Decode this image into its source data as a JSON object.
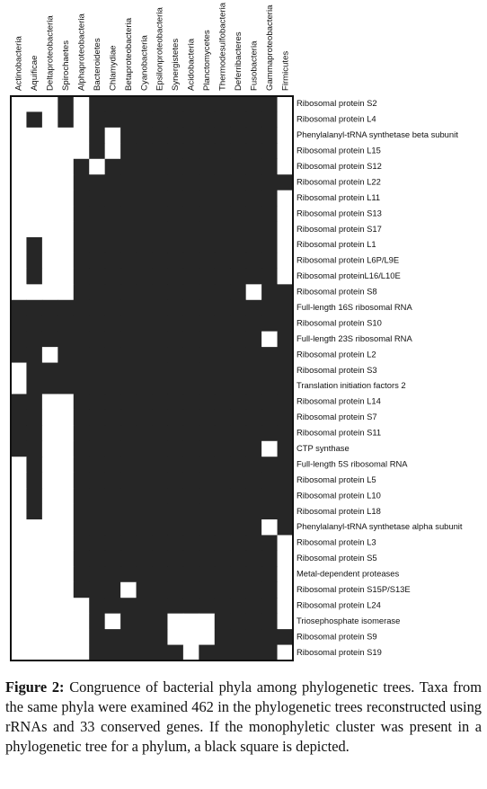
{
  "figure": {
    "columns": [
      "Actinobacteria",
      "Aquificae",
      "Deltaproteobacteria",
      "Spirochaetes",
      "Alphaproteobacteria",
      "Bacteroidetes",
      "Chlamydiae",
      "Betaproteobacteria",
      "Cyanobacteria",
      "Epsilonproteobacteria",
      "Synergistetes",
      "Acidobacteria",
      "Planctomycetes",
      "Thermodesulfobacteria",
      "Deferribacteres",
      "Fusobacteria",
      "Gammaproteobacteria",
      "Firmicutes"
    ],
    "rows": [
      {
        "label": "Ribosomal protein S2",
        "cells": [
          0,
          0,
          0,
          1,
          0,
          1,
          1,
          1,
          1,
          1,
          1,
          1,
          1,
          1,
          1,
          1,
          1,
          0
        ]
      },
      {
        "label": "Ribosomal protein L4",
        "cells": [
          0,
          1,
          0,
          1,
          0,
          1,
          1,
          1,
          1,
          1,
          1,
          1,
          1,
          1,
          1,
          1,
          1,
          0
        ]
      },
      {
        "label": "Phenylalanyl-tRNA synthetase beta subunit",
        "cells": [
          0,
          0,
          0,
          0,
          0,
          1,
          0,
          1,
          1,
          1,
          1,
          1,
          1,
          1,
          1,
          1,
          1,
          0
        ]
      },
      {
        "label": "Ribosomal protein L15",
        "cells": [
          0,
          0,
          0,
          0,
          0,
          1,
          0,
          1,
          1,
          1,
          1,
          1,
          1,
          1,
          1,
          1,
          1,
          0
        ]
      },
      {
        "label": "Ribosomal protein S12",
        "cells": [
          0,
          0,
          0,
          0,
          1,
          0,
          1,
          1,
          1,
          1,
          1,
          1,
          1,
          1,
          1,
          1,
          1,
          0
        ]
      },
      {
        "label": "Ribosomal protein L22",
        "cells": [
          0,
          0,
          0,
          0,
          1,
          1,
          1,
          1,
          1,
          1,
          1,
          1,
          1,
          1,
          1,
          1,
          1,
          1
        ]
      },
      {
        "label": "Ribosomal protein L11",
        "cells": [
          0,
          0,
          0,
          0,
          1,
          1,
          1,
          1,
          1,
          1,
          1,
          1,
          1,
          1,
          1,
          1,
          1,
          0
        ]
      },
      {
        "label": "Ribosomal protein S13",
        "cells": [
          0,
          0,
          0,
          0,
          1,
          1,
          1,
          1,
          1,
          1,
          1,
          1,
          1,
          1,
          1,
          1,
          1,
          0
        ]
      },
      {
        "label": "Ribosomal protein S17",
        "cells": [
          0,
          0,
          0,
          0,
          1,
          1,
          1,
          1,
          1,
          1,
          1,
          1,
          1,
          1,
          1,
          1,
          1,
          0
        ]
      },
      {
        "label": "Ribosomal protein L1",
        "cells": [
          0,
          1,
          0,
          0,
          1,
          1,
          1,
          1,
          1,
          1,
          1,
          1,
          1,
          1,
          1,
          1,
          1,
          0
        ]
      },
      {
        "label": "Ribosomal protein L6P/L9E",
        "cells": [
          0,
          1,
          0,
          0,
          1,
          1,
          1,
          1,
          1,
          1,
          1,
          1,
          1,
          1,
          1,
          1,
          1,
          0
        ]
      },
      {
        "label": "Ribosomal proteinL16/L10E",
        "cells": [
          0,
          1,
          0,
          0,
          1,
          1,
          1,
          1,
          1,
          1,
          1,
          1,
          1,
          1,
          1,
          1,
          1,
          0
        ]
      },
      {
        "label": "Ribosomal protein S8",
        "cells": [
          0,
          0,
          0,
          0,
          1,
          1,
          1,
          1,
          1,
          1,
          1,
          1,
          1,
          1,
          1,
          0,
          1,
          1
        ]
      },
      {
        "label": "Full-length 16S ribosomal RNA",
        "cells": [
          1,
          1,
          1,
          1,
          1,
          1,
          1,
          1,
          1,
          1,
          1,
          1,
          1,
          1,
          1,
          1,
          1,
          1
        ]
      },
      {
        "label": "Ribosomal protein S10",
        "cells": [
          1,
          1,
          1,
          1,
          1,
          1,
          1,
          1,
          1,
          1,
          1,
          1,
          1,
          1,
          1,
          1,
          1,
          1
        ]
      },
      {
        "label": "Full-length 23S ribosomal RNA",
        "cells": [
          1,
          1,
          1,
          1,
          1,
          1,
          1,
          1,
          1,
          1,
          1,
          1,
          1,
          1,
          1,
          1,
          0,
          1
        ]
      },
      {
        "label": "Ribosomal protein L2",
        "cells": [
          1,
          1,
          0,
          1,
          1,
          1,
          1,
          1,
          1,
          1,
          1,
          1,
          1,
          1,
          1,
          1,
          1,
          1
        ]
      },
      {
        "label": "Ribosomal protein S3",
        "cells": [
          0,
          1,
          1,
          1,
          1,
          1,
          1,
          1,
          1,
          1,
          1,
          1,
          1,
          1,
          1,
          1,
          1,
          1
        ]
      },
      {
        "label": "Translation initiation factors 2",
        "cells": [
          0,
          1,
          1,
          1,
          1,
          1,
          1,
          1,
          1,
          1,
          1,
          1,
          1,
          1,
          1,
          1,
          1,
          1
        ]
      },
      {
        "label": "Ribosomal protein L14",
        "cells": [
          1,
          1,
          0,
          0,
          1,
          1,
          1,
          1,
          1,
          1,
          1,
          1,
          1,
          1,
          1,
          1,
          1,
          1
        ]
      },
      {
        "label": "Ribosomal protein S7",
        "cells": [
          1,
          1,
          0,
          0,
          1,
          1,
          1,
          1,
          1,
          1,
          1,
          1,
          1,
          1,
          1,
          1,
          1,
          1
        ]
      },
      {
        "label": "Ribosomal protein S11",
        "cells": [
          1,
          1,
          0,
          0,
          1,
          1,
          1,
          1,
          1,
          1,
          1,
          1,
          1,
          1,
          1,
          1,
          1,
          1
        ]
      },
      {
        "label": "CTP synthase",
        "cells": [
          1,
          1,
          0,
          0,
          1,
          1,
          1,
          1,
          1,
          1,
          1,
          1,
          1,
          1,
          1,
          1,
          0,
          1
        ]
      },
      {
        "label": "Full-length 5S ribosomal RNA",
        "cells": [
          0,
          1,
          0,
          0,
          1,
          1,
          1,
          1,
          1,
          1,
          1,
          1,
          1,
          1,
          1,
          1,
          1,
          1
        ]
      },
      {
        "label": "Ribosomal protein L5",
        "cells": [
          0,
          1,
          0,
          0,
          1,
          1,
          1,
          1,
          1,
          1,
          1,
          1,
          1,
          1,
          1,
          1,
          1,
          1
        ]
      },
      {
        "label": "Ribosomal protein L10",
        "cells": [
          0,
          1,
          0,
          0,
          1,
          1,
          1,
          1,
          1,
          1,
          1,
          1,
          1,
          1,
          1,
          1,
          1,
          1
        ]
      },
      {
        "label": "Ribosomal protein L18",
        "cells": [
          0,
          1,
          0,
          0,
          1,
          1,
          1,
          1,
          1,
          1,
          1,
          1,
          1,
          1,
          1,
          1,
          1,
          1
        ]
      },
      {
        "label": "Phenylalanyl-tRNA synthetase alpha subunit",
        "cells": [
          0,
          0,
          0,
          0,
          1,
          1,
          1,
          1,
          1,
          1,
          1,
          1,
          1,
          1,
          1,
          1,
          0,
          1
        ]
      },
      {
        "label": "Ribosomal protein L3",
        "cells": [
          0,
          0,
          0,
          0,
          1,
          1,
          1,
          1,
          1,
          1,
          1,
          1,
          1,
          1,
          1,
          1,
          1,
          0
        ]
      },
      {
        "label": "Ribosomal protein S5",
        "cells": [
          0,
          0,
          0,
          0,
          1,
          1,
          1,
          1,
          1,
          1,
          1,
          1,
          1,
          1,
          1,
          1,
          1,
          0
        ]
      },
      {
        "label": "Metal-dependent proteases",
        "cells": [
          0,
          0,
          0,
          0,
          1,
          1,
          1,
          1,
          1,
          1,
          1,
          1,
          1,
          1,
          1,
          1,
          1,
          0
        ]
      },
      {
        "label": "Ribosomal protein S15P/S13E",
        "cells": [
          0,
          0,
          0,
          0,
          1,
          1,
          1,
          0,
          1,
          1,
          1,
          1,
          1,
          1,
          1,
          1,
          1,
          0
        ]
      },
      {
        "label": "Ribosomal protein L24",
        "cells": [
          0,
          0,
          0,
          0,
          0,
          1,
          1,
          1,
          1,
          1,
          1,
          1,
          1,
          1,
          1,
          1,
          1,
          0
        ]
      },
      {
        "label": "Triosephosphate isomerase",
        "cells": [
          0,
          0,
          0,
          0,
          0,
          1,
          0,
          1,
          1,
          1,
          0,
          0,
          0,
          1,
          1,
          1,
          1,
          0
        ]
      },
      {
        "label": "Ribosomal protein S9",
        "cells": [
          0,
          0,
          0,
          0,
          0,
          1,
          1,
          1,
          1,
          1,
          0,
          0,
          0,
          1,
          1,
          1,
          1,
          1
        ]
      },
      {
        "label": "Ribosomal protein S19",
        "cells": [
          0,
          0,
          0,
          0,
          0,
          1,
          1,
          1,
          1,
          1,
          1,
          0,
          1,
          1,
          1,
          1,
          1,
          0
        ]
      }
    ],
    "caption": {
      "label": "Figure 2:",
      "text": "Congruence of bacterial phyla among phylogenetic trees. Taxa from the same phyla were examined 462 in the phylogenetic trees reconstructed using rRNAs and 33 conserved genes. If the monophyletic cluster was present in a phylogenetic tree for a phylum, a black square is depicted."
    }
  }
}
